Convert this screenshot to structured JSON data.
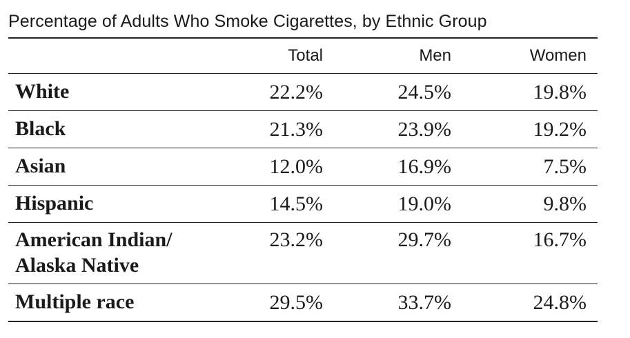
{
  "chart_data": {
    "type": "table",
    "title": "Percentage of Adults Who Smoke Cigarettes, by Ethnic Group",
    "columns": [
      "Total",
      "Men",
      "Women"
    ],
    "rows": [
      {
        "label": "White",
        "values": [
          "22.2%",
          "24.5%",
          "19.8%"
        ]
      },
      {
        "label": "Black",
        "values": [
          "21.3%",
          "23.9%",
          "19.2%"
        ]
      },
      {
        "label": "Asian",
        "values": [
          "12.0%",
          "16.9%",
          "7.5%"
        ]
      },
      {
        "label": "Hispanic",
        "values": [
          "14.5%",
          "19.0%",
          "9.8%"
        ]
      },
      {
        "label": "American Indian/\nAlaska Native",
        "values": [
          "23.2%",
          "29.7%",
          "16.7%"
        ]
      },
      {
        "label": "Multiple race",
        "values": [
          "29.5%",
          "33.7%",
          "24.8%"
        ]
      }
    ]
  }
}
